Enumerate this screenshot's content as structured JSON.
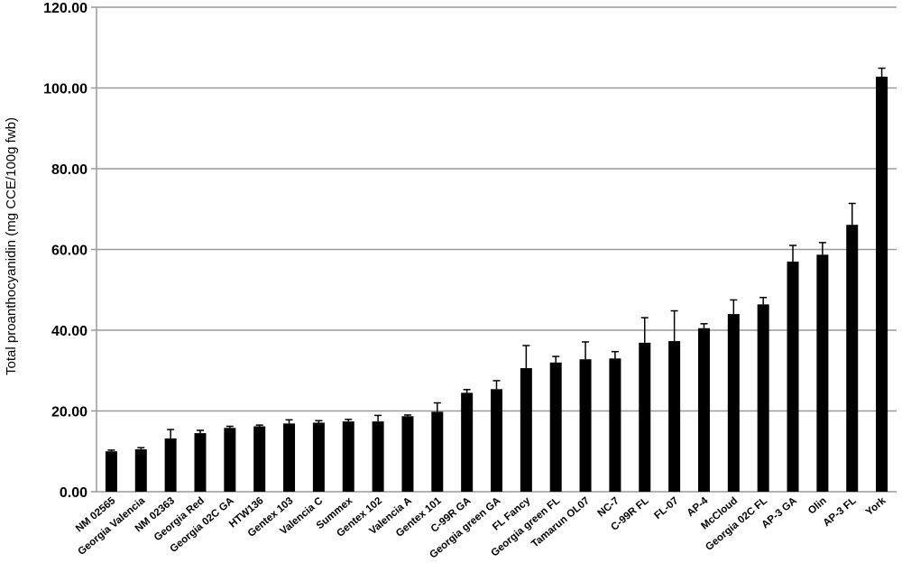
{
  "chart_data": {
    "type": "bar",
    "title": "",
    "xlabel": "",
    "ylabel": "Total proanthocyanidin (mg CCE/100g fwb)",
    "ylim": [
      0,
      120
    ],
    "yticks": [
      0,
      20,
      40,
      60,
      80,
      100,
      120
    ],
    "ytick_labels": [
      "0.00",
      "20.00",
      "40.00",
      "60.00",
      "80.00",
      "100.00",
      "120.00"
    ],
    "grid": "horizontal",
    "legend": "none",
    "bar_color": "#000000",
    "grid_color": "#9a9a9a",
    "categories": [
      "NM 02565",
      "Georgia Valencia",
      "NM 02363",
      "Georgia Red",
      "Georgia 02C GA",
      "HTW136",
      "Gentex 103",
      "Valencia C",
      "Summex",
      "Gentex 102",
      "Valencia A",
      "Gentex 101",
      "C-99R GA",
      "Georgia green GA",
      "FL Fancy",
      "Georgia green FL",
      "Tamarun OL07",
      "NC-7",
      "C-99R FL",
      "FL-07",
      "AP-4",
      "McCloud",
      "Georgia 02C FL",
      "AP-3 GA",
      "Olin",
      "AP-3 FL",
      "York"
    ],
    "values": [
      10.0,
      10.5,
      13.2,
      14.5,
      15.8,
      16.2,
      16.9,
      17.1,
      17.4,
      17.4,
      18.7,
      19.8,
      24.5,
      25.4,
      30.6,
      32.0,
      32.8,
      33.0,
      36.9,
      37.3,
      40.5,
      44.0,
      46.4,
      57.0,
      58.7,
      66.1,
      102.8
    ],
    "errors": [
      0.3,
      0.4,
      2.2,
      0.7,
      0.4,
      0.3,
      0.9,
      0.5,
      0.5,
      1.5,
      0.3,
      2.2,
      0.8,
      2.1,
      5.6,
      1.5,
      4.3,
      1.7,
      6.2,
      7.5,
      1.1,
      3.5,
      1.7,
      4.0,
      3.0,
      5.3,
      2.1
    ]
  }
}
